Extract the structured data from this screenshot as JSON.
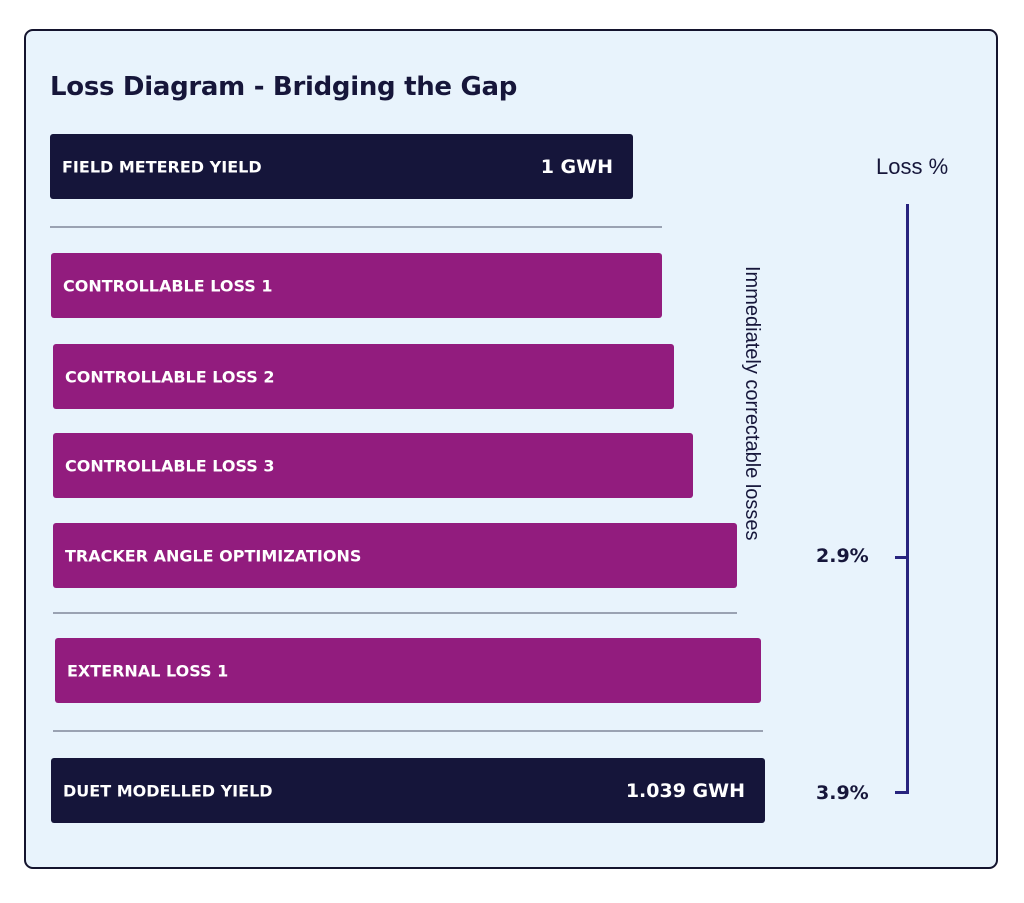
{
  "chart_data": {
    "type": "bar",
    "title": "Loss Diagram - Bridging the Gap",
    "bars": [
      {
        "label": "FIELD METERED YIELD",
        "value_text": "1 GWH",
        "value": 1.0,
        "unit": "GWH",
        "kind": "yield"
      },
      {
        "label": "CONTROLLABLE LOSS 1",
        "kind": "loss",
        "group": "controllable"
      },
      {
        "label": "CONTROLLABLE LOSS 2",
        "kind": "loss",
        "group": "controllable"
      },
      {
        "label": "CONTROLLABLE LOSS 3",
        "kind": "loss",
        "group": "controllable"
      },
      {
        "label": "TRACKER ANGLE OPTIMIZATIONS",
        "kind": "loss",
        "group": "controllable"
      },
      {
        "label": "EXTERNAL LOSS 1",
        "kind": "loss",
        "group": "external"
      },
      {
        "label": "DUET MODELLED YIELD",
        "value_text": "1.039 GWH",
        "value": 1.039,
        "unit": "GWH",
        "kind": "yield"
      }
    ],
    "group_annotation": "Immediately correctable losses",
    "loss_axis": {
      "label": "Loss %",
      "markers": [
        {
          "label": "2.9%",
          "value": 2.9
        },
        {
          "label": "3.9%",
          "value": 3.9
        }
      ]
    }
  },
  "colors": {
    "yield": "#15153a",
    "loss": "#921c7e",
    "separator": "#9aa2b2",
    "bracket": "#27237e"
  }
}
